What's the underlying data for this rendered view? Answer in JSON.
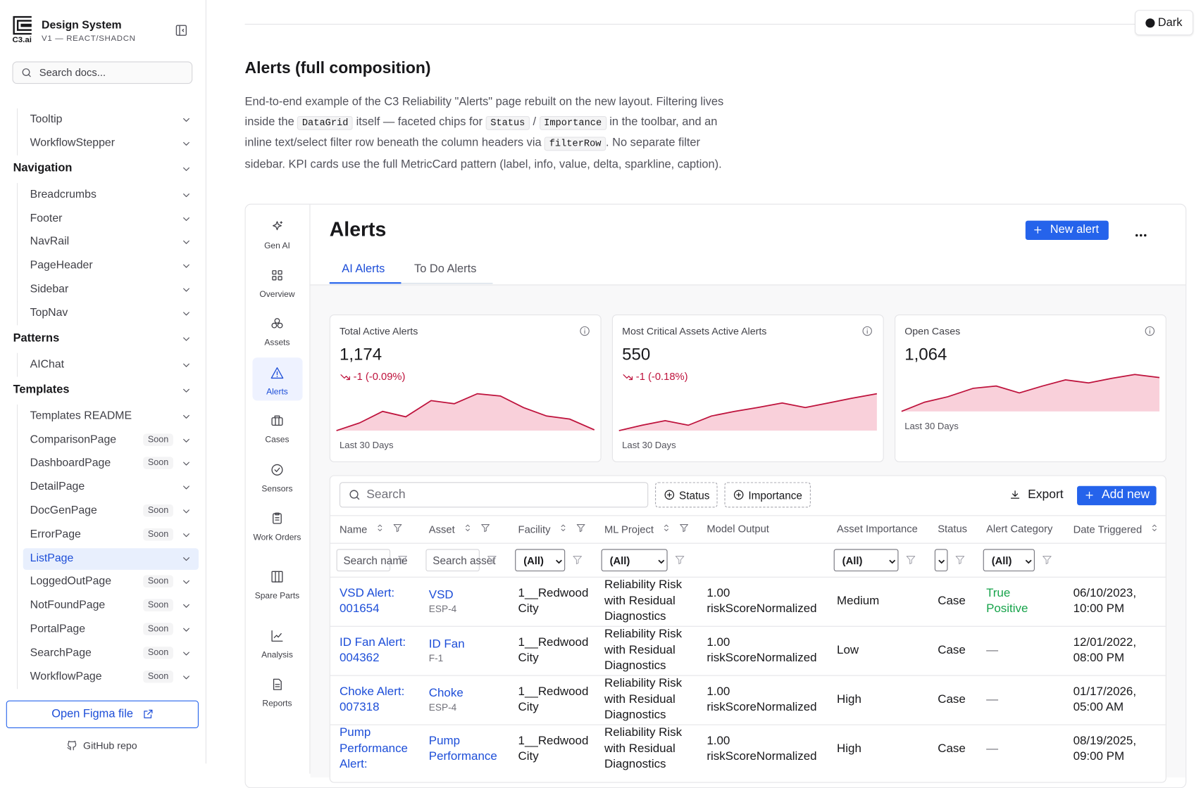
{
  "sidebar": {
    "logo": "C3.ai",
    "brand": "Design System",
    "version": "V1 — REACT/SHADCN",
    "search_placeholder": "Search docs...",
    "nav": [
      {
        "label": "Tooltip",
        "level": 2
      },
      {
        "label": "WorkflowStepper",
        "level": 2
      },
      {
        "label": "Navigation",
        "level": 1
      },
      {
        "label": "Breadcrumbs",
        "level": 2
      },
      {
        "label": "Footer",
        "level": 2
      },
      {
        "label": "NavRail",
        "level": 2
      },
      {
        "label": "PageHeader",
        "level": 2
      },
      {
        "label": "Sidebar",
        "level": 2
      },
      {
        "label": "TopNav",
        "level": 2
      },
      {
        "label": "Patterns",
        "level": 1
      },
      {
        "label": "AIChat",
        "level": 2
      },
      {
        "label": "Templates",
        "level": 1
      },
      {
        "label": "Templates README",
        "level": 2
      },
      {
        "label": "ComparisonPage",
        "level": 2,
        "badge": "Soon"
      },
      {
        "label": "DashboardPage",
        "level": 2,
        "badge": "Soon"
      },
      {
        "label": "DetailPage",
        "level": 2
      },
      {
        "label": "DocGenPage",
        "level": 2,
        "badge": "Soon"
      },
      {
        "label": "ErrorPage",
        "level": 2,
        "badge": "Soon"
      },
      {
        "label": "ListPage",
        "level": 2,
        "active": true
      },
      {
        "label": "LoggedOutPage",
        "level": 2,
        "badge": "Soon"
      },
      {
        "label": "NotFoundPage",
        "level": 2,
        "badge": "Soon"
      },
      {
        "label": "PortalPage",
        "level": 2,
        "badge": "Soon"
      },
      {
        "label": "SearchPage",
        "level": 2,
        "badge": "Soon"
      },
      {
        "label": "WorkflowPage",
        "level": 2,
        "badge": "Soon"
      }
    ],
    "figma_button": "Open Figma file",
    "github_link": "GitHub repo"
  },
  "theme_toggle": "Dark",
  "section": {
    "title": "Alerts (full composition)",
    "description": [
      "End-to-end example of the C3 Reliability \"Alerts\" page rebuilt on the new layout. Filtering lives inside the ",
      "DataGrid",
      " itself — faceted chips for ",
      "Status",
      " / ",
      "Importance",
      " in the toolbar, and an inline text/select filter row beneath the column headers via ",
      "filterRow",
      ". No separate filter sidebar. KPI cards use the full MetricCard pattern (label, info, value, delta, sparkline, caption)."
    ]
  },
  "demo": {
    "rail": [
      "Gen AI",
      "Overview",
      "Assets",
      "Alerts",
      "Cases",
      "Sensors",
      "Work Orders",
      "Spare Parts",
      "Analysis",
      "Reports"
    ],
    "rail_active": 3,
    "title": "Alerts",
    "new_button": "New alert",
    "tabs": [
      "AI Alerts",
      "To Do Alerts"
    ],
    "active_tab": 0,
    "kpis": [
      {
        "label": "Total Active Alerts",
        "value": "1,174",
        "delta": "-1 (-0.09%)",
        "caption": "Last 30 Days"
      },
      {
        "label": "Most Critical Assets Active Alerts",
        "value": "550",
        "delta": "-1 (-0.18%)",
        "caption": "Last 30 Days"
      },
      {
        "label": "Open Cases",
        "value": "1,064",
        "caption": "Last 30 Days"
      }
    ],
    "grid": {
      "search_placeholder": "Search",
      "chips": [
        "Status",
        "Importance"
      ],
      "export": "Export",
      "add_button": "Add new",
      "columns": [
        {
          "label": "Name",
          "sort": true,
          "filter": true
        },
        {
          "label": "Asset",
          "sort": true,
          "filter": true
        },
        {
          "label": "Facility",
          "sort": true,
          "filter": true
        },
        {
          "label": "ML Project",
          "sort": true,
          "filter": true
        },
        {
          "label": "Model Output"
        },
        {
          "label": "Asset Importance"
        },
        {
          "label": "Status"
        },
        {
          "label": "Alert Category"
        },
        {
          "label": "Date Triggered",
          "sort": true
        }
      ],
      "filters": [
        {
          "kind": "text",
          "placeholder": "Search name"
        },
        {
          "kind": "text",
          "placeholder": "Search asset"
        },
        {
          "kind": "select",
          "value": "(All)"
        },
        {
          "kind": "select",
          "value": "(All)"
        },
        null,
        {
          "kind": "select",
          "value": "(All)"
        },
        {
          "kind": "select"
        },
        {
          "kind": "select",
          "value": "(All)"
        },
        null
      ],
      "rows": [
        {
          "name": "VSD Alert: 001654",
          "asset": "VSD",
          "asset_id": "ESP-4",
          "facility": "1__Redwood City",
          "ml_project": "Reliability Risk with Residual Diagnostics",
          "model_output": "1.00 riskScoreNormalized",
          "importance": "Medium",
          "status": "Case",
          "category": "True Positive",
          "category_color": "#16a34a",
          "date": "06/10/2023, 10:00 PM"
        },
        {
          "name": "ID Fan Alert: 004362",
          "asset": "ID Fan",
          "asset_id": "F-1",
          "facility": "1__Redwood City",
          "ml_project": "Reliability Risk with Residual Diagnostics",
          "model_output": "1.00 riskScoreNormalized",
          "importance": "Low",
          "status": "Case",
          "category": "—",
          "date": "12/01/2022, 08:00 PM"
        },
        {
          "name": "Choke Alert: 007318",
          "asset": "Choke",
          "asset_id": "ESP-4",
          "facility": "1__Redwood City",
          "ml_project": "Reliability Risk with Residual Diagnostics",
          "model_output": "1.00 riskScoreNormalized",
          "importance": "High",
          "status": "Case",
          "category": "—",
          "date": "01/17/2026, 05:00 AM"
        },
        {
          "name": "Pump Performance Alert:",
          "asset": "Pump Performance",
          "facility": "1__Redwood City",
          "ml_project": "Reliability Risk with Residual Diagnostics",
          "model_output": "1.00 riskScoreNormalized",
          "importance": "High",
          "status": "Case",
          "category": "—",
          "date": "08/19/2025, 09:00 PM"
        }
      ]
    }
  }
}
